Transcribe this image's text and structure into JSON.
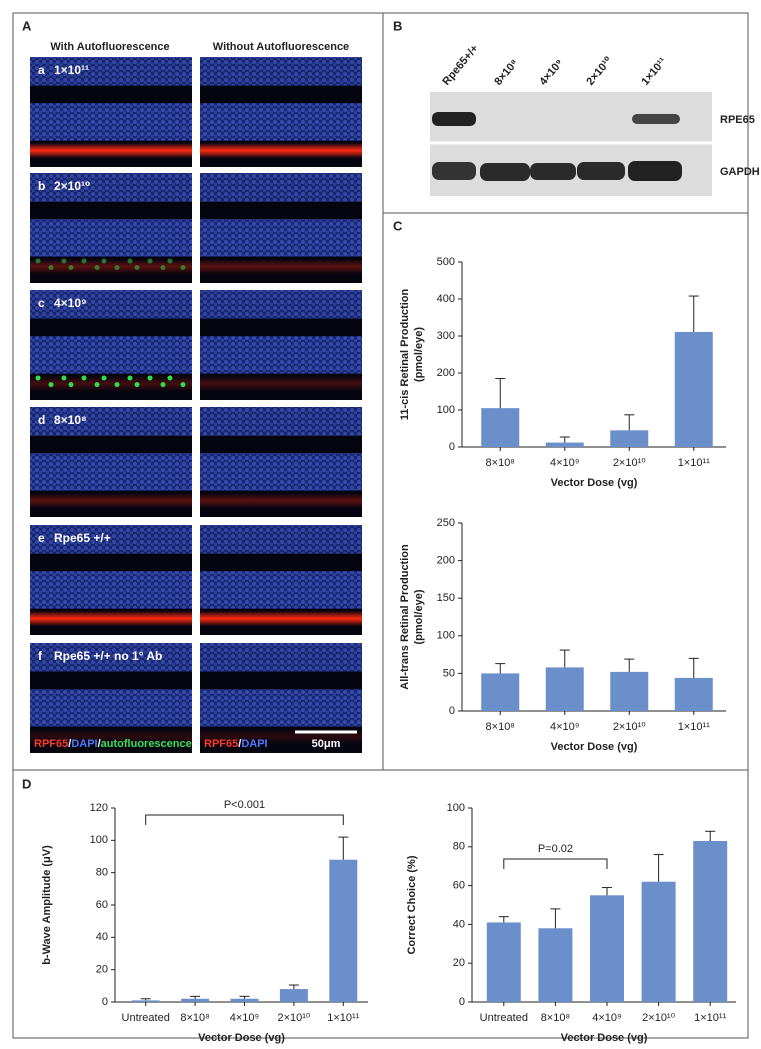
{
  "panel_a": {
    "label": "A",
    "col_headers": [
      "With Autofluorescence",
      "Without Autofluorescence"
    ],
    "rows": [
      {
        "letter": "a",
        "label": "1×10¹¹"
      },
      {
        "letter": "b",
        "label": "2×10¹⁰"
      },
      {
        "letter": "c",
        "label": "4×10⁹"
      },
      {
        "letter": "d",
        "label": "8×10⁸"
      },
      {
        "letter": "e",
        "label": "Rpe65 +/+"
      },
      {
        "letter": "f",
        "label": "Rpe65 +/+ no 1° Ab"
      }
    ],
    "caption_left": [
      "RPF65",
      "/",
      "DAPI",
      "/",
      "autofluorescence"
    ],
    "caption_right": [
      "RPF65",
      "/",
      "DAPI"
    ],
    "scale_bar": "50μm"
  },
  "panel_b": {
    "label": "B",
    "lanes": [
      "Rpe65+/+",
      "8×10⁸",
      "4×10⁹",
      "2×10¹⁰",
      "1×10¹¹"
    ],
    "rows": [
      "RPE65",
      "GAPDH"
    ]
  },
  "panel_c": {
    "label": "C"
  },
  "panel_d": {
    "label": "D"
  },
  "chart_data": [
    {
      "type": "bar",
      "ylabel": [
        "11-cis Retinal Production",
        "(pmol/eye)"
      ],
      "xlabel": "Vector Dose (vg)",
      "categories": [
        "8×10⁸",
        "4×10⁹",
        "2×10¹⁰",
        "1×10¹¹"
      ],
      "values": [
        105,
        12,
        45,
        311
      ],
      "errors": [
        80,
        15,
        42,
        97
      ],
      "color": "#6b8fcb",
      "ylim": [
        0,
        500
      ],
      "yticks": [
        0,
        100,
        200,
        300,
        400,
        500
      ]
    },
    {
      "type": "bar",
      "ylabel": [
        "All-trans Retinal Production",
        "(pmol/eye)"
      ],
      "xlabel": "Vector Dose (vg)",
      "categories": [
        "8×10⁸",
        "4×10⁹",
        "2×10¹⁰",
        "1×10¹¹"
      ],
      "values": [
        50,
        58,
        52,
        44
      ],
      "errors": [
        13,
        23,
        17,
        26
      ],
      "color": "#6b8fcb",
      "ylim": [
        0,
        250
      ],
      "yticks": [
        0,
        50,
        100,
        150,
        200,
        250
      ]
    },
    {
      "type": "bar",
      "ylabel": [
        "b-Wave Amplitude (μV)"
      ],
      "xlabel": "Vector Dose (vg)",
      "categories": [
        "Untreated",
        "8×10⁸",
        "4×10⁹",
        "2×10¹⁰",
        "1×10¹¹"
      ],
      "values": [
        1,
        2,
        2,
        8,
        88
      ],
      "errors": [
        1,
        1.5,
        1.5,
        2.5,
        14
      ],
      "color": "#6b8fcb",
      "ylim": [
        0,
        120
      ],
      "yticks": [
        0,
        20,
        40,
        60,
        80,
        100,
        120
      ],
      "annotation": "P<0.001"
    },
    {
      "type": "bar",
      "ylabel": [
        "Correct Choice (%)"
      ],
      "xlabel": "Vector Dose (vg)",
      "categories": [
        "Untreated",
        "8×10⁸",
        "4×10⁹",
        "2×10¹⁰",
        "1×10¹¹"
      ],
      "values": [
        41,
        38,
        55,
        62,
        83
      ],
      "errors": [
        3,
        10,
        4,
        14,
        5
      ],
      "color": "#6b8fcb",
      "ylim": [
        0,
        100
      ],
      "yticks": [
        0,
        20,
        40,
        60,
        80,
        100
      ],
      "annotation": "P=0.02"
    }
  ]
}
